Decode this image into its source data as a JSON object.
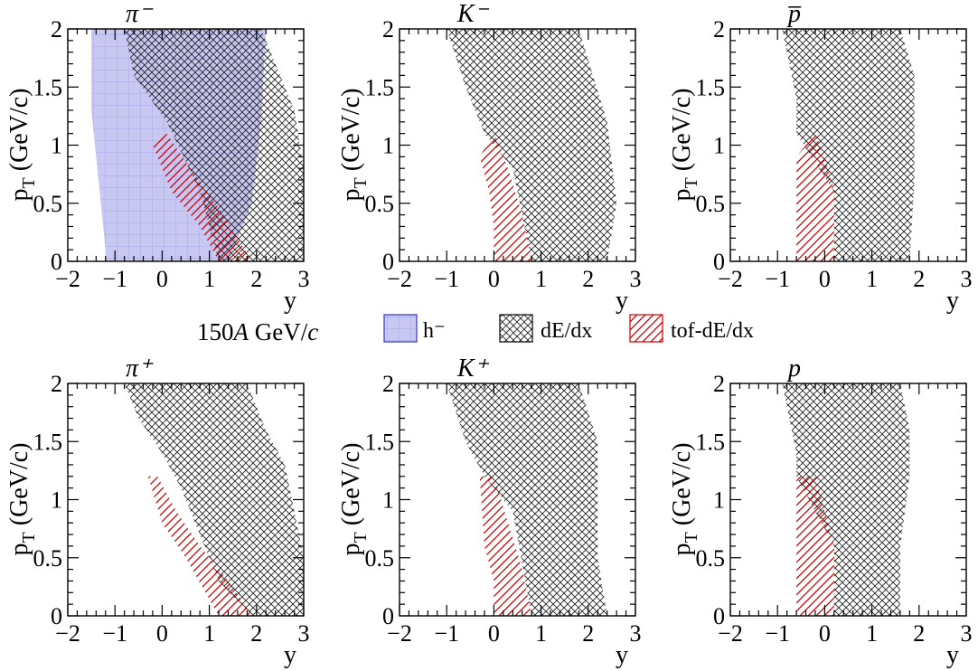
{
  "figure": {
    "energy_prefix": "150",
    "energy_italic": "A",
    "energy_unit": " GeV/",
    "energy_c": "c"
  },
  "legend": [
    {
      "label": "h⁻",
      "key": "h",
      "color": "#3333cc",
      "fill": "#c8c8f5"
    },
    {
      "label": "dE/dx",
      "key": "dedx",
      "color": "#000000"
    },
    {
      "label": "tof-dE/dx",
      "key": "tof",
      "color": "#cc0000"
    }
  ],
  "colors": {
    "h_fill": "#c8c8f0",
    "h_grid": "#aaaaee",
    "dedx_hatch": "#222222",
    "tof_hatch": "#cc0000"
  },
  "chart_data": [
    {
      "type": "area",
      "title": "π⁻",
      "xlabel": "y",
      "ylabel": "p_T (GeV/c)",
      "xlim": [
        -2,
        3
      ],
      "ylim": [
        0,
        2
      ],
      "x_ticks": [
        "−2",
        "−1",
        "0",
        "1",
        "2",
        "3"
      ],
      "y_ticks": [
        "0",
        "0.5",
        "1",
        "1.5",
        "2"
      ],
      "regions": {
        "h": [
          [
            -1.2,
            0
          ],
          [
            1.4,
            0
          ],
          [
            1.9,
            0.5
          ],
          [
            2.1,
            1.2
          ],
          [
            2.2,
            2.0
          ],
          [
            -1.5,
            2.0
          ],
          [
            -1.5,
            1.3
          ],
          [
            -1.2,
            0.1
          ]
        ],
        "dedx": [
          [
            1.2,
            0
          ],
          [
            3.0,
            0
          ],
          [
            3.0,
            0.8
          ],
          [
            2.8,
            1.3
          ],
          [
            2.4,
            1.7
          ],
          [
            2.1,
            2.0
          ],
          [
            -0.8,
            2.0
          ],
          [
            -0.6,
            1.6
          ],
          [
            0.1,
            1.2
          ],
          [
            0.8,
            0.6
          ]
        ],
        "tof": [
          [
            1.2,
            0
          ],
          [
            1.9,
            0
          ],
          [
            1.3,
            0.4
          ],
          [
            0.6,
            0.8
          ],
          [
            0.1,
            1.1
          ],
          [
            -0.2,
            1.0
          ],
          [
            0.2,
            0.6
          ],
          [
            0.8,
            0.3
          ]
        ]
      }
    },
    {
      "type": "area",
      "title": "K⁻",
      "xlabel": "y",
      "ylabel": "p_T (GeV/c)",
      "xlim": [
        -2,
        3
      ],
      "ylim": [
        0,
        2
      ],
      "x_ticks": [
        "−2",
        "−1",
        "0",
        "1",
        "2",
        "3"
      ],
      "y_ticks": [
        "0",
        "0.5",
        "1",
        "1.5",
        "2"
      ],
      "regions": {
        "dedx": [
          [
            0.8,
            0
          ],
          [
            2.4,
            0
          ],
          [
            2.6,
            0.5
          ],
          [
            2.4,
            1.2
          ],
          [
            2.1,
            1.6
          ],
          [
            1.8,
            2.0
          ],
          [
            -1.0,
            2.0
          ],
          [
            -0.6,
            1.5
          ],
          [
            -0.2,
            1.1
          ],
          [
            0.4,
            0.8
          ]
        ],
        "tof": [
          [
            0.0,
            0
          ],
          [
            0.8,
            0
          ],
          [
            0.6,
            0.4
          ],
          [
            0.3,
            0.8
          ],
          [
            0.0,
            1.1
          ],
          [
            -0.3,
            0.9
          ],
          [
            -0.1,
            0.6
          ],
          [
            0.0,
            0.3
          ]
        ]
      }
    },
    {
      "type": "area",
      "title": "p̅",
      "xlabel": "y",
      "ylabel": "p_T (GeV/c)",
      "xlim": [
        -2,
        3
      ],
      "ylim": [
        0,
        2
      ],
      "x_ticks": [
        "−2",
        "−1",
        "0",
        "1",
        "2",
        "3"
      ],
      "y_ticks": [
        "0",
        "0.5",
        "1",
        "1.5",
        "2"
      ],
      "regions": {
        "dedx": [
          [
            0.2,
            0
          ],
          [
            1.8,
            0
          ],
          [
            1.9,
            0.7
          ],
          [
            1.9,
            1.6
          ],
          [
            1.6,
            2.0
          ],
          [
            -0.9,
            2.0
          ],
          [
            -0.6,
            1.4
          ],
          [
            -0.6,
            1.1
          ],
          [
            0.2,
            0.6
          ]
        ],
        "tof": [
          [
            -0.6,
            0
          ],
          [
            0.2,
            0
          ],
          [
            0.2,
            0.6
          ],
          [
            0.0,
            0.9
          ],
          [
            -0.2,
            1.1
          ],
          [
            -0.6,
            0.9
          ]
        ]
      }
    },
    {
      "type": "area",
      "title": "π⁺",
      "xlabel": "y",
      "ylabel": "p_T (GeV/c)",
      "xlim": [
        -2,
        3
      ],
      "ylim": [
        0,
        2
      ],
      "x_ticks": [
        "−2",
        "−1",
        "0",
        "1",
        "2",
        "3"
      ],
      "y_ticks": [
        "0",
        "0.5",
        "1",
        "1.5",
        "2"
      ],
      "regions": {
        "dedx": [
          [
            1.9,
            0
          ],
          [
            3.0,
            0
          ],
          [
            3.0,
            0.5
          ],
          [
            2.8,
            0.9
          ],
          [
            2.6,
            1.3
          ],
          [
            2.2,
            1.6
          ],
          [
            1.8,
            2.0
          ],
          [
            -0.8,
            2.0
          ],
          [
            -0.5,
            1.7
          ],
          [
            0.0,
            1.4
          ],
          [
            0.4,
            1.1
          ],
          [
            1.2,
            0.3
          ]
        ],
        "tof": [
          [
            1.2,
            0
          ],
          [
            1.9,
            0
          ],
          [
            1.4,
            0.3
          ],
          [
            0.8,
            0.6
          ],
          [
            0.3,
            0.9
          ],
          [
            -0.1,
            1.2
          ],
          [
            -0.3,
            1.2
          ],
          [
            0.0,
            0.8
          ],
          [
            0.5,
            0.5
          ]
        ]
      }
    },
    {
      "type": "area",
      "title": "K⁺",
      "xlabel": "y",
      "ylabel": "p_T (GeV/c)",
      "xlim": [
        -2,
        3
      ],
      "ylim": [
        0,
        2
      ],
      "x_ticks": [
        "−2",
        "−1",
        "0",
        "1",
        "2",
        "3"
      ],
      "y_ticks": [
        "0",
        "0.5",
        "1",
        "1.5",
        "2"
      ],
      "regions": {
        "dedx": [
          [
            0.8,
            0
          ],
          [
            2.4,
            0
          ],
          [
            2.2,
            0.5
          ],
          [
            2.2,
            1.5
          ],
          [
            1.8,
            2.0
          ],
          [
            -1.0,
            2.0
          ],
          [
            -0.6,
            1.5
          ],
          [
            -0.2,
            1.2
          ],
          [
            0.4,
            0.9
          ]
        ],
        "tof": [
          [
            0.0,
            0
          ],
          [
            0.8,
            0
          ],
          [
            0.6,
            0.4
          ],
          [
            0.3,
            0.8
          ],
          [
            0.0,
            1.2
          ],
          [
            -0.3,
            1.2
          ],
          [
            -0.2,
            0.6
          ],
          [
            0.0,
            0.3
          ]
        ]
      }
    },
    {
      "type": "area",
      "title": "p",
      "xlabel": "y",
      "ylabel": "p_T (GeV/c)",
      "xlim": [
        -2,
        3
      ],
      "ylim": [
        0,
        2
      ],
      "x_ticks": [
        "−2",
        "−1",
        "0",
        "1",
        "2",
        "3"
      ],
      "y_ticks": [
        "0",
        "0.5",
        "1",
        "1.5",
        "2"
      ],
      "regions": {
        "dedx": [
          [
            0.2,
            0
          ],
          [
            1.6,
            0
          ],
          [
            1.6,
            0.6
          ],
          [
            1.8,
            1.2
          ],
          [
            1.8,
            1.6
          ],
          [
            1.6,
            2.0
          ],
          [
            -0.9,
            2.0
          ],
          [
            -0.6,
            1.4
          ],
          [
            -0.6,
            1.2
          ],
          [
            0.2,
            0.6
          ]
        ],
        "tof": [
          [
            -0.6,
            0
          ],
          [
            0.2,
            0
          ],
          [
            0.2,
            0.6
          ],
          [
            0.0,
            0.9
          ],
          [
            -0.2,
            1.2
          ],
          [
            -0.6,
            1.2
          ]
        ]
      }
    }
  ]
}
